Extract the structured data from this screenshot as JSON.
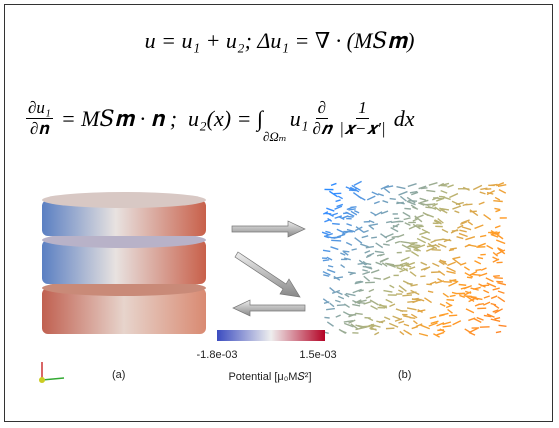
{
  "equations": {
    "line1": "u = u₁ + u₂;   Δu₁ = ∇ · (M𝑆𝐦)",
    "line2": {
      "frac_num": "∂u₁",
      "frac_den": "∂𝐧",
      "middle": "= M𝑆𝐦 · 𝐧 ;  u₂(x) = ∫",
      "integral_sub": "∂Ωₘ",
      "after_integral": "u₁",
      "deriv_num": "∂",
      "deriv_den": "∂𝒏",
      "kernel_num": "1",
      "kernel_den": "|𝒙−𝒙′|",
      "end": "dx"
    }
  },
  "figure": {
    "label_a": "(a)",
    "label_b": "(b)",
    "colorbar": {
      "min_label": "-1.8e-03",
      "max_label": "1.5e-03",
      "title": "Potential [μ₀M𝑆²]"
    }
  }
}
